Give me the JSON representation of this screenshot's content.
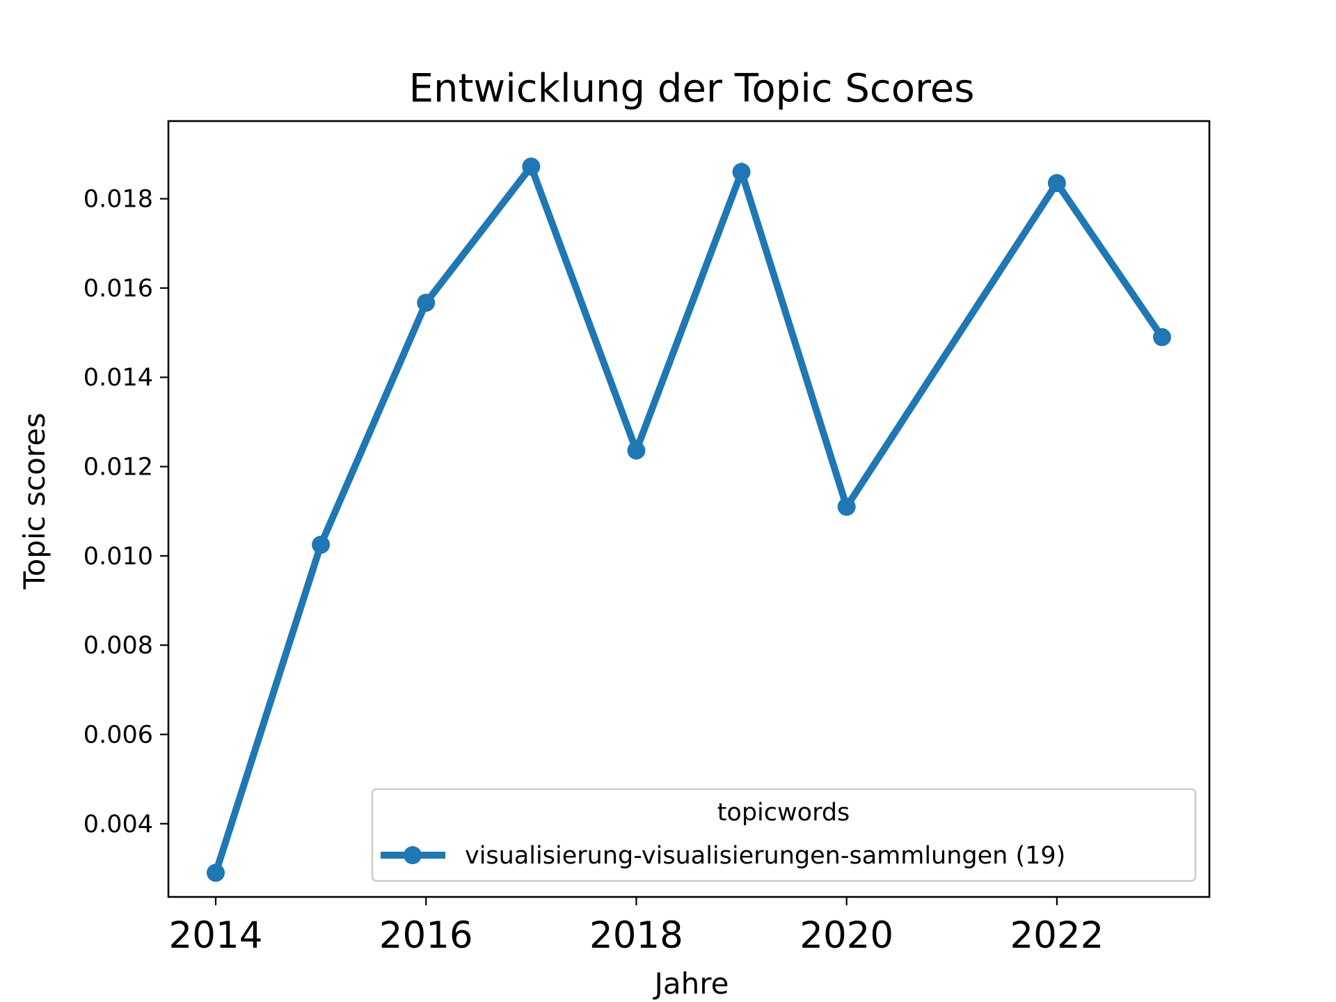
{
  "chart_data": {
    "type": "line",
    "title": "Entwicklung der Topic Scores",
    "xlabel": "Jahre",
    "ylabel": "Topic scores",
    "x": [
      2014,
      2015,
      2016,
      2017,
      2018,
      2019,
      2020,
      2022,
      2023
    ],
    "xticks": [
      "2014",
      "2016",
      "2018",
      "2020",
      "2022"
    ],
    "yticks": [
      "0.004",
      "0.006",
      "0.008",
      "0.010",
      "0.012",
      "0.014",
      "0.016",
      "0.018"
    ],
    "xlim": [
      2013.55,
      2023.45
    ],
    "ylim": [
      0.00236,
      0.01974
    ],
    "grid": false,
    "legend": {
      "title": "topicwords",
      "placement": "lower-right"
    },
    "series": [
      {
        "name": "visualisierung-visualisierungen-sammlungen (19)",
        "color": "#1f77b4",
        "marker": "circle",
        "values": [
          0.0029,
          0.01025,
          0.01567,
          0.01872,
          0.01236,
          0.0186,
          0.0111,
          0.01835,
          0.0149
        ]
      }
    ]
  }
}
